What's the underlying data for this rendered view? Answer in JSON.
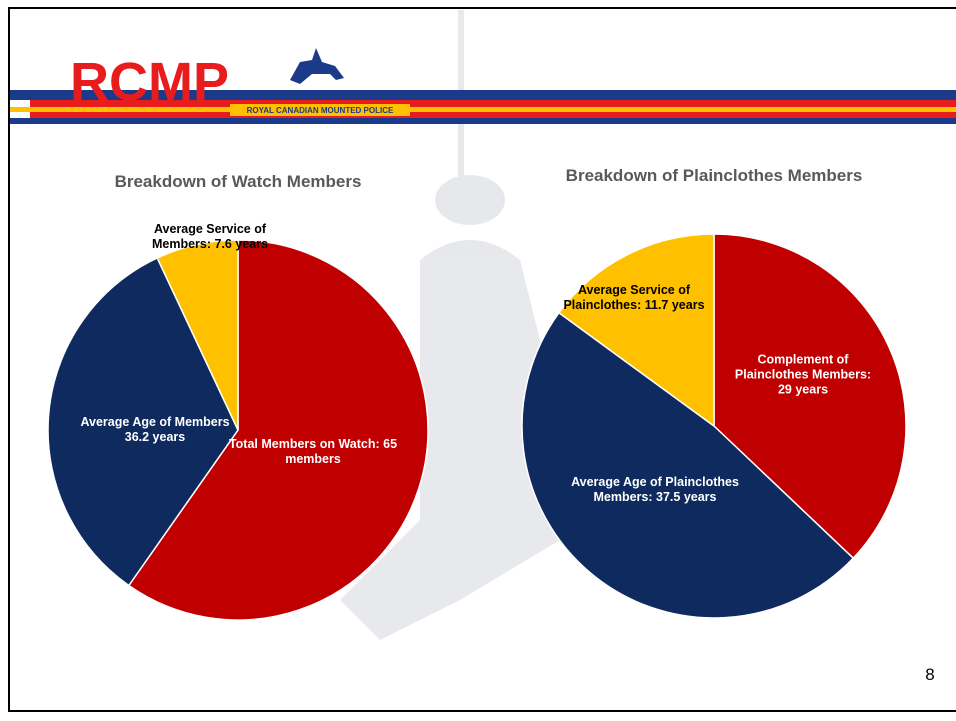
{
  "header": {
    "logo": "RCMP",
    "subtitle": "ROYAL CANADIAN MOUNTED POLICE"
  },
  "chart_data": [
    {
      "type": "pie",
      "title": "Breakdown of Watch Members",
      "categories": [
        "Total Members on Watch:",
        "Average Age of Members",
        "Average Service of Members:"
      ],
      "values": [
        65,
        36.2,
        7.6
      ],
      "value_labels": [
        "65 members",
        "36.2 years",
        "7.6 years"
      ],
      "colors": [
        "#c00000",
        "#0e2a5e",
        "#ffc000"
      ]
    },
    {
      "type": "pie",
      "title": "Breakdown of Plainclothes Members",
      "categories": [
        "Complement of Plainclothes Members:",
        "Average Age of Plainclothes Members:",
        "Average Service of Plainclothes:"
      ],
      "values": [
        29,
        37.5,
        11.7
      ],
      "value_labels": [
        "29 years",
        "37.5 years",
        "11.7 years"
      ],
      "colors": [
        "#c00000",
        "#0e2a5e",
        "#ffc000"
      ]
    }
  ],
  "page_number": "8"
}
